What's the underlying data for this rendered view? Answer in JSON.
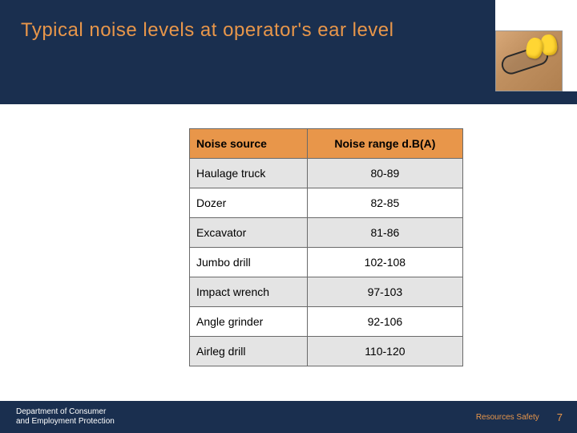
{
  "slide": {
    "title": "Typical noise levels at operator's ear level",
    "title_color": "#e8964a",
    "band_color": "#1a2f4f",
    "background_color": "#ffffff"
  },
  "corner_image": {
    "description": "safety-earplugs-and-glasses-photo",
    "earplug_color": "#ffd633",
    "glasses_color": "#2a2a2a"
  },
  "table": {
    "type": "table",
    "header_bg": "#e8964a",
    "row_alt_bg": "#e4e4e4",
    "row_bg": "#ffffff",
    "border_color": "#6a6a6a",
    "font_size": 14,
    "columns": [
      "Noise source",
      "Noise range d.B(A)"
    ],
    "rows": [
      {
        "source": "Haulage truck",
        "range": "80-89"
      },
      {
        "source": "Dozer",
        "range": "82-85"
      },
      {
        "source": "Excavator",
        "range": "81-86"
      },
      {
        "source": "Jumbo drill",
        "range": "102-108"
      },
      {
        "source": "Impact wrench",
        "range": "97-103"
      },
      {
        "source": "Angle grinder",
        "range": "92-106"
      },
      {
        "source": "Airleg drill",
        "range": "110-120"
      }
    ]
  },
  "footer": {
    "department_line1": "Department of Consumer",
    "department_line2": "and Employment Protection",
    "safety_label": "Resources Safety",
    "page_number": "7",
    "bg_color": "#1a2f4f",
    "accent_color": "#e8964a"
  }
}
